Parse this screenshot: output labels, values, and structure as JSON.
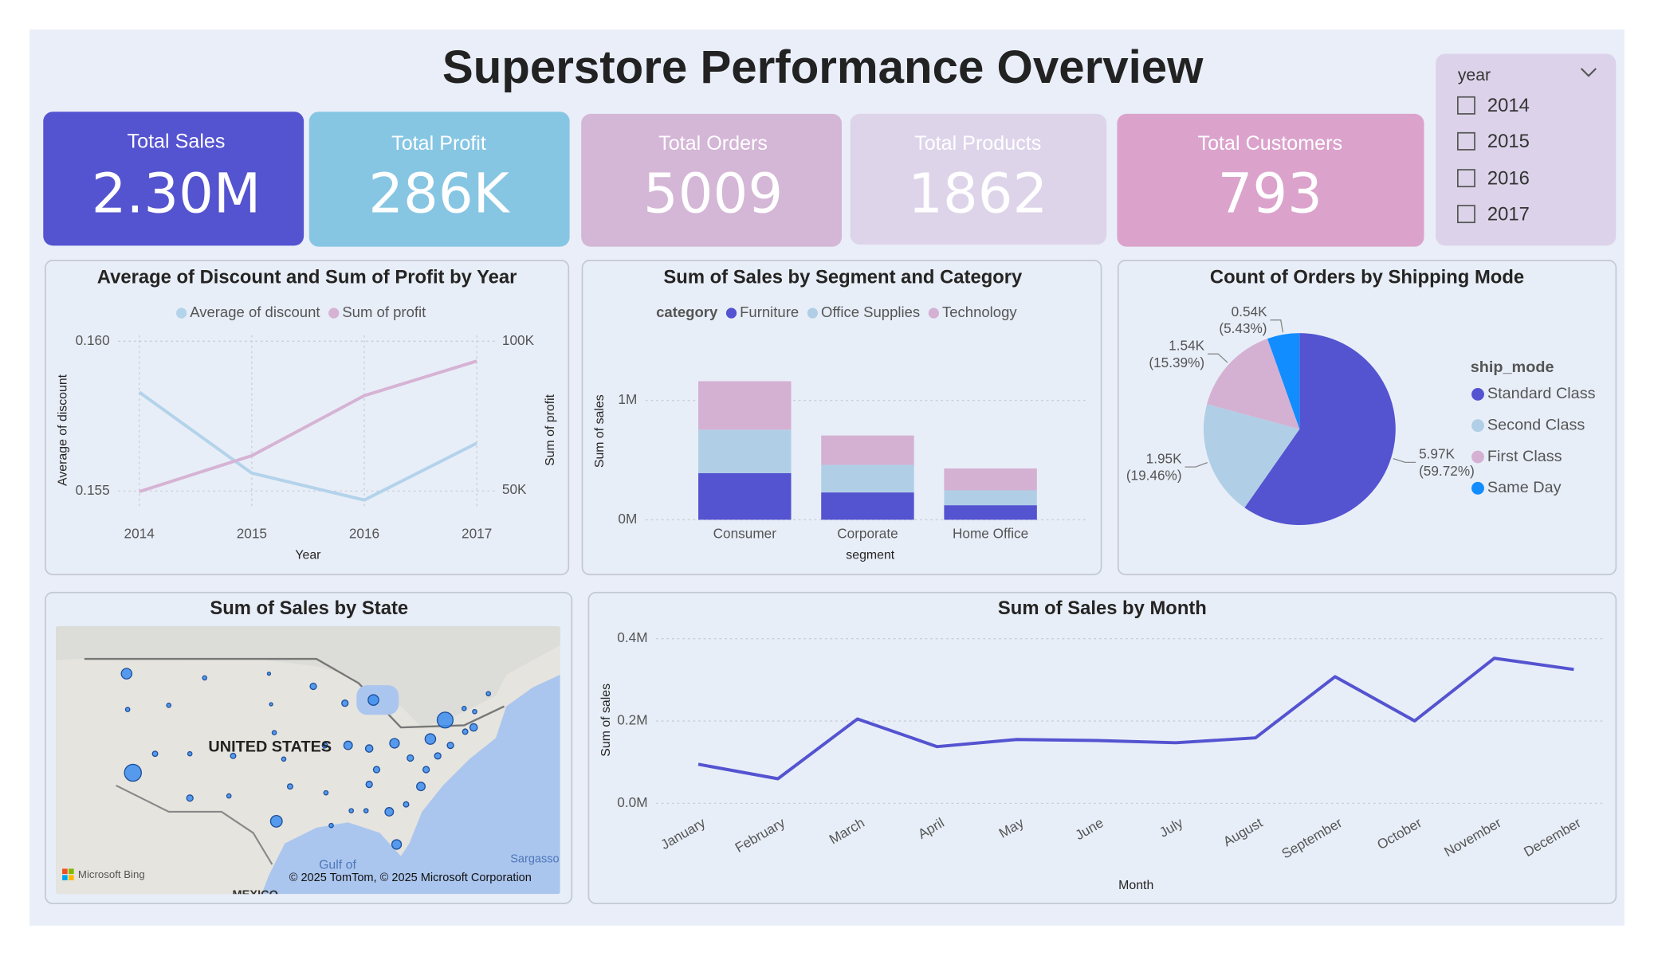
{
  "title": "Superstore Performance Overview",
  "kpis": [
    {
      "label": "Total Sales",
      "value": "2.30M"
    },
    {
      "label": "Total Profit",
      "value": "286K"
    },
    {
      "label": "Total Orders",
      "value": "5009"
    },
    {
      "label": "Total Products",
      "value": "1862"
    },
    {
      "label": "Total Customers",
      "value": "793"
    }
  ],
  "slicer": {
    "title": "year",
    "options": [
      "2014",
      "2015",
      "2016",
      "2017"
    ]
  },
  "map": {
    "title": "Sum of Sales by State",
    "country_label": "UNITED STATES",
    "gulf_label": "Gulf of",
    "sea_label": "Sargasso",
    "neighbor_label": "MEXICO",
    "logo": "Microsoft Bing",
    "copyright": "© 2025 TomTom, © 2025 Microsoft Corporation"
  },
  "chart_data": [
    {
      "type": "line",
      "title": "Average of Discount and Sum of Profit by Year",
      "categories": [
        "2014",
        "2015",
        "2016",
        "2017"
      ],
      "series": [
        {
          "name": "Average of discount",
          "color": "#b3d3ea",
          "values": [
            0.1583,
            0.1556,
            0.1547,
            0.1566
          ]
        },
        {
          "name": "Sum of profit",
          "color": "#d6b3d4",
          "axis": "y2",
          "values": [
            49544,
            61619,
            81795,
            93439
          ]
        }
      ],
      "ylim": [
        0.1545,
        0.1602
      ],
      "yticks": [
        0.155,
        {
          "value": 0.16,
          "label": "0.160"
        }
      ],
      "y2lim": [
        44700,
        102100
      ],
      "y2ticks": [
        {
          "value": 50000,
          "label": "50K"
        },
        {
          "value": 100000,
          "label": "100K"
        }
      ],
      "x_label": "Year",
      "y_label": "Average of discount",
      "y2_label": "Sum of profit",
      "grid": true
    },
    {
      "type": "bar",
      "stacked": true,
      "title": "Sum of Sales by Segment and Category",
      "categories": [
        "Consumer",
        "Corporate",
        "Home Office"
      ],
      "legend_title": "category",
      "series": [
        {
          "name": "Furniture",
          "color": "#5453d0",
          "values": [
            391049,
            229020,
            121930
          ]
        },
        {
          "name": "Office Supplies",
          "color": "#b0cfe6",
          "values": [
            363952,
            230676,
            124418
          ]
        },
        {
          "name": "Technology",
          "color": "#d4b1d3",
          "values": [
            406040,
            246450,
            183470
          ]
        }
      ],
      "ylim": [
        0,
        1440000
      ],
      "yticks": [
        {
          "value": 0,
          "label": "0M"
        },
        {
          "value": 1000000,
          "label": "1M"
        }
      ],
      "x_label": "segment",
      "y_label": "Sum of sales",
      "grid": true
    },
    {
      "type": "pie",
      "title": "Count of Orders by Shipping Mode",
      "legend_title": "ship_mode",
      "categories": [
        "Standard Class",
        "Second Class",
        "First Class",
        "Same Day"
      ],
      "values": [
        5968,
        1945,
        1538,
        543
      ],
      "value_labels": [
        "5.97K",
        "1.95K",
        "1.54K",
        "0.54K"
      ],
      "percent_labels": [
        "(59.72%)",
        "(19.46%)",
        "(15.39%)",
        "(5.43%)"
      ],
      "colors": [
        "#5453d0",
        "#b0cfe6",
        "#d4b1d3",
        "#118dff"
      ]
    },
    {
      "type": "line",
      "title": "Sum of Sales by Month",
      "categories": [
        "January",
        "February",
        "March",
        "April",
        "May",
        "June",
        "July",
        "August",
        "September",
        "October",
        "November",
        "December"
      ],
      "series": [
        {
          "name": "Sum of sales",
          "color": "#5453d0",
          "values": [
            94925,
            59751,
            205005,
            137762,
            155029,
            152719,
            147238,
            159044,
            307650,
            200323,
            352461,
            325294
          ]
        }
      ],
      "ylim": [
        0,
        420000
      ],
      "yticks": [
        {
          "value": 0,
          "label": "0.0M"
        },
        {
          "value": 200000,
          "label": "0.2M"
        },
        {
          "value": 400000,
          "label": "0.4M"
        }
      ],
      "x_label": "Month",
      "y_label": "Sum of sales",
      "grid": true,
      "legend": false
    }
  ]
}
